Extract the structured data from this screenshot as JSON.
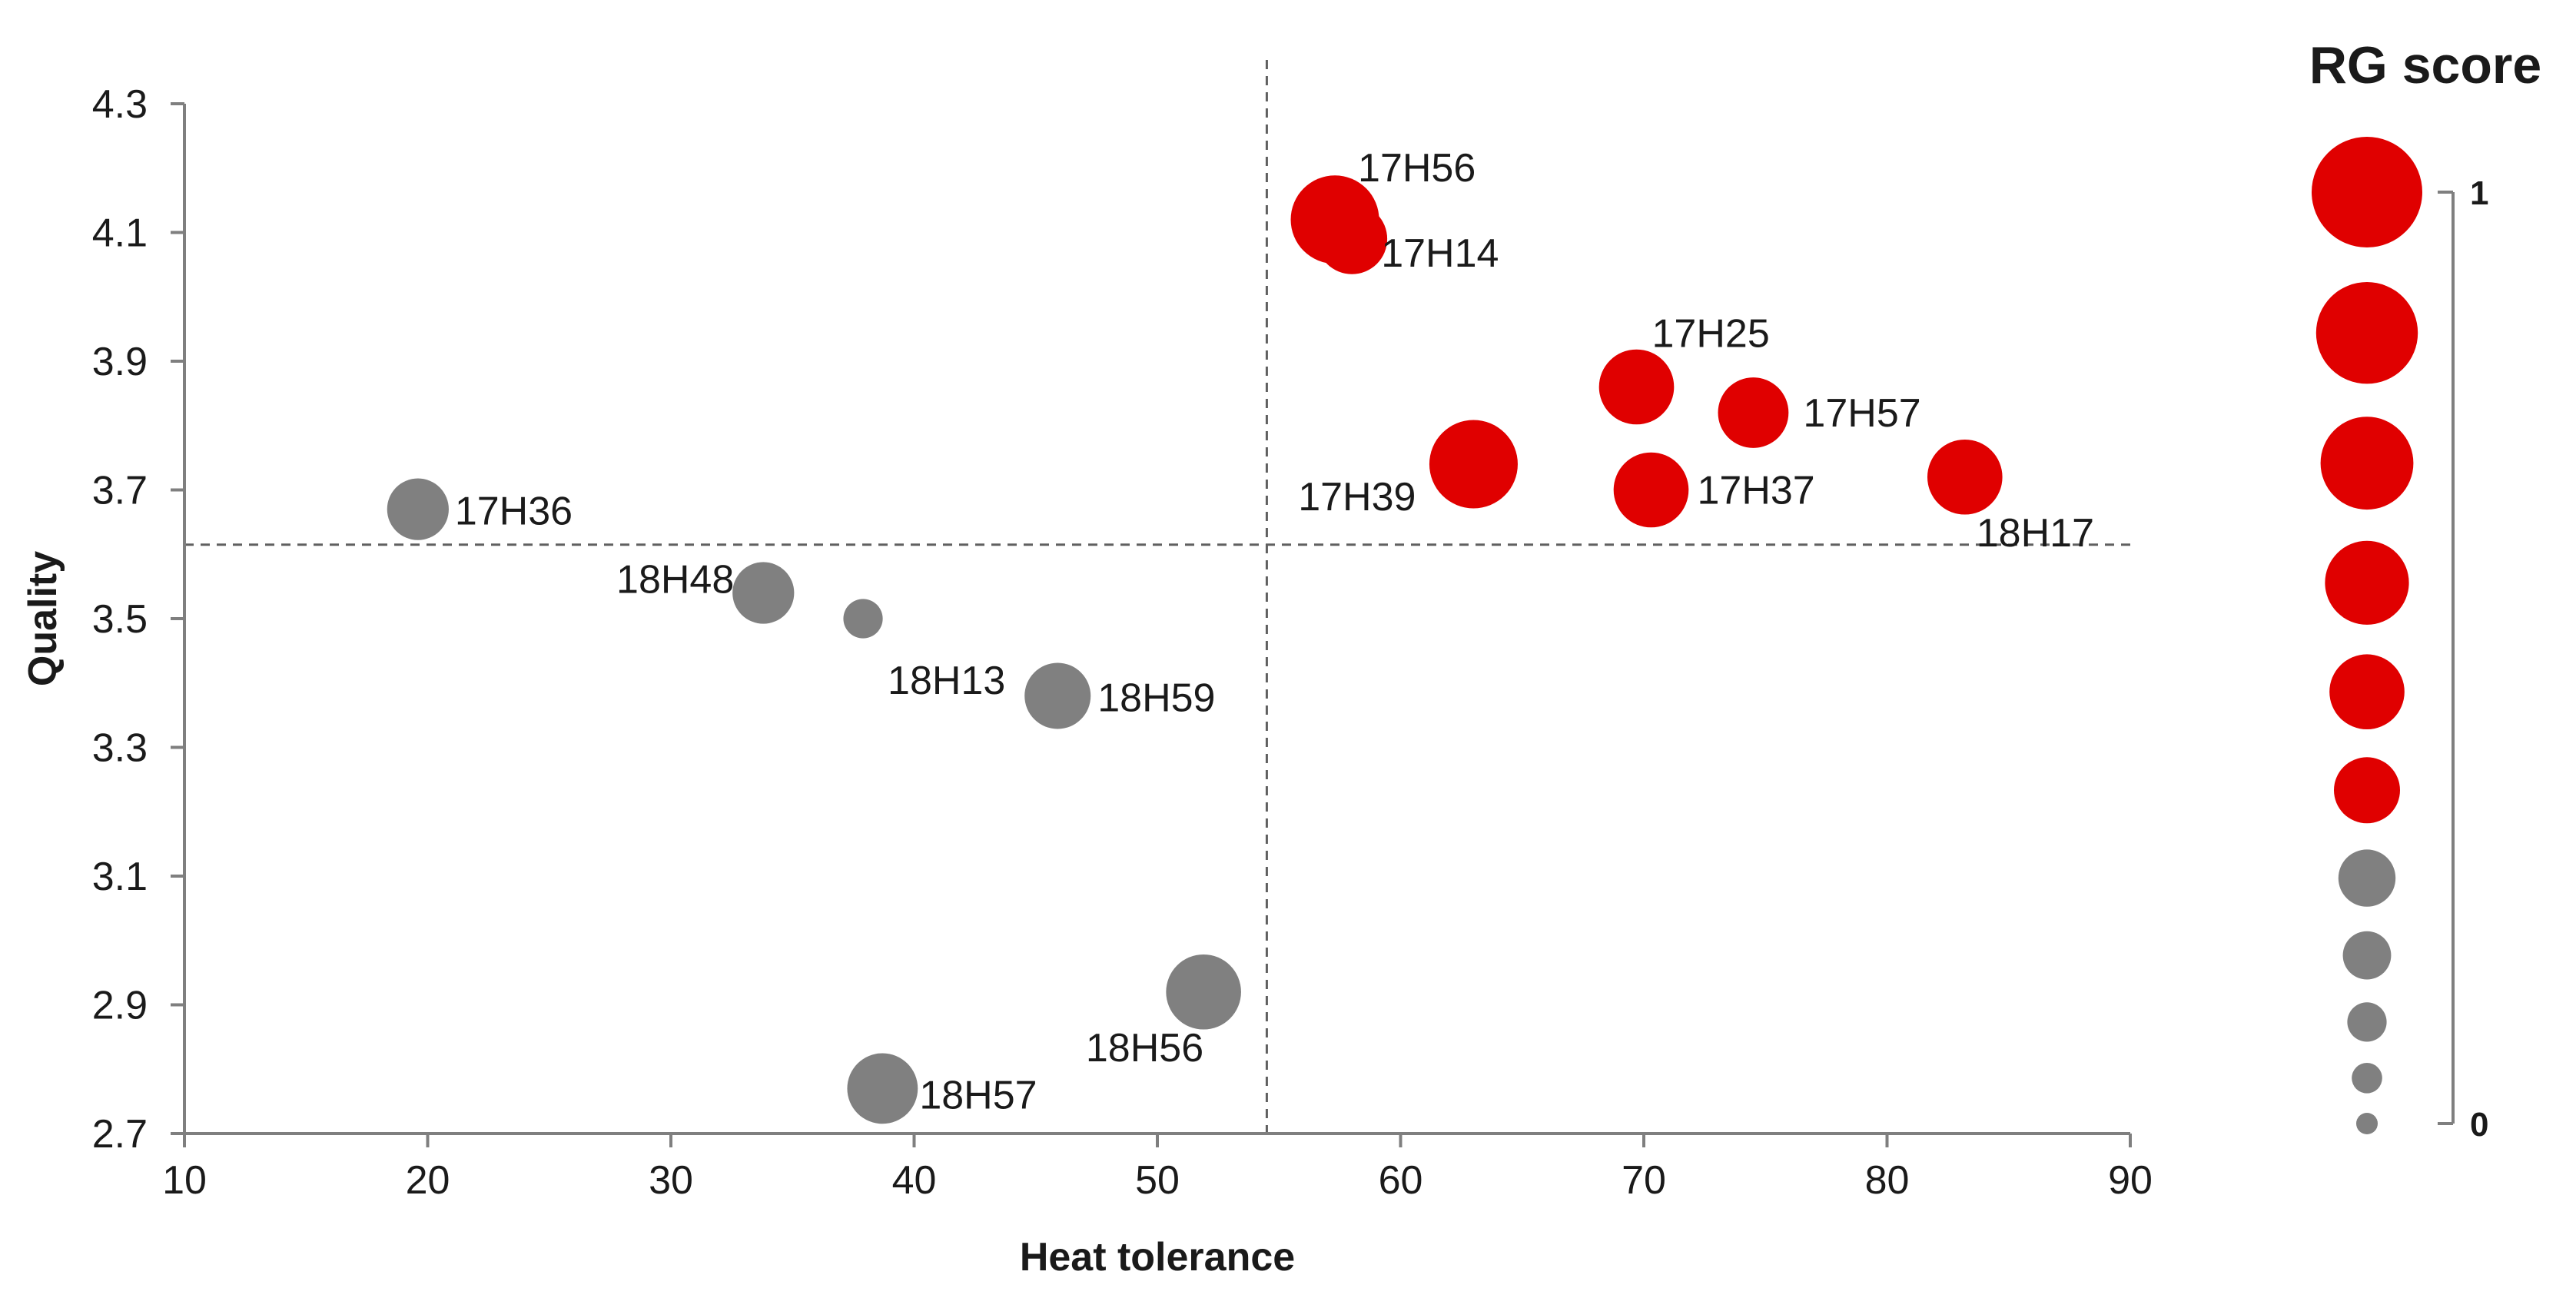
{
  "chart_data": {
    "type": "scatter",
    "subtype": "bubble",
    "xlabel": "Heat tolerance",
    "ylabel": "Quality",
    "xlim": [
      10,
      90
    ],
    "ylim": [
      2.7,
      4.3
    ],
    "xticks": [
      "10",
      "20",
      "30",
      "40",
      "50",
      "60",
      "70",
      "80",
      "90"
    ],
    "yticks": [
      "2.7",
      "2.9",
      "3.1",
      "3.3",
      "3.5",
      "3.7",
      "3.9",
      "4.1",
      "4.3"
    ],
    "reference_lines": {
      "x": 54.5,
      "y": 3.615
    },
    "colors": {
      "high": "#e00000",
      "low": "#808080",
      "axis": "#7f7f7f"
    },
    "points": [
      {
        "label": "17H56",
        "x": 57.3,
        "y": 4.12,
        "rg": 0.75,
        "group": "high"
      },
      {
        "label": "17H14",
        "x": 58.0,
        "y": 4.09,
        "rg": 0.55,
        "group": "high"
      },
      {
        "label": "17H25",
        "x": 69.7,
        "y": 3.86,
        "rg": 0.6,
        "group": "high"
      },
      {
        "label": "17H57",
        "x": 74.5,
        "y": 3.82,
        "rg": 0.55,
        "group": "high"
      },
      {
        "label": "17H39",
        "x": 63.0,
        "y": 3.74,
        "rg": 0.75,
        "group": "high"
      },
      {
        "label": "17H37",
        "x": 70.3,
        "y": 3.7,
        "rg": 0.6,
        "group": "high"
      },
      {
        "label": "18H17",
        "x": 83.2,
        "y": 3.72,
        "rg": 0.6,
        "group": "high"
      },
      {
        "label": "17H36",
        "x": 19.6,
        "y": 3.67,
        "rg": 0.45,
        "group": "low"
      },
      {
        "label": "18H48",
        "x": 33.8,
        "y": 3.54,
        "rg": 0.45,
        "group": "low"
      },
      {
        "label": "18H13",
        "x": 37.9,
        "y": 3.5,
        "rg": 0.2,
        "group": "low"
      },
      {
        "label": "18H59",
        "x": 45.9,
        "y": 3.38,
        "rg": 0.5,
        "group": "low"
      },
      {
        "label": "18H56",
        "x": 51.9,
        "y": 2.92,
        "rg": 0.6,
        "group": "low"
      },
      {
        "label": "18H57",
        "x": 38.7,
        "y": 2.77,
        "rg": 0.55,
        "group": "low"
      }
    ],
    "legend": {
      "title": "RG score",
      "max_label": "1",
      "min_label": "0",
      "scale": [
        {
          "rg": 1.0,
          "group": "high"
        },
        {
          "rg": 0.9,
          "group": "high"
        },
        {
          "rg": 0.8,
          "group": "high"
        },
        {
          "rg": 0.7,
          "group": "high"
        },
        {
          "rg": 0.6,
          "group": "high"
        },
        {
          "rg": 0.5,
          "group": "high"
        },
        {
          "rg": 0.4,
          "group": "low"
        },
        {
          "rg": 0.3,
          "group": "low"
        },
        {
          "rg": 0.2,
          "group": "low"
        },
        {
          "rg": 0.1,
          "group": "low"
        },
        {
          "rg": 0.0,
          "group": "low"
        }
      ]
    }
  }
}
